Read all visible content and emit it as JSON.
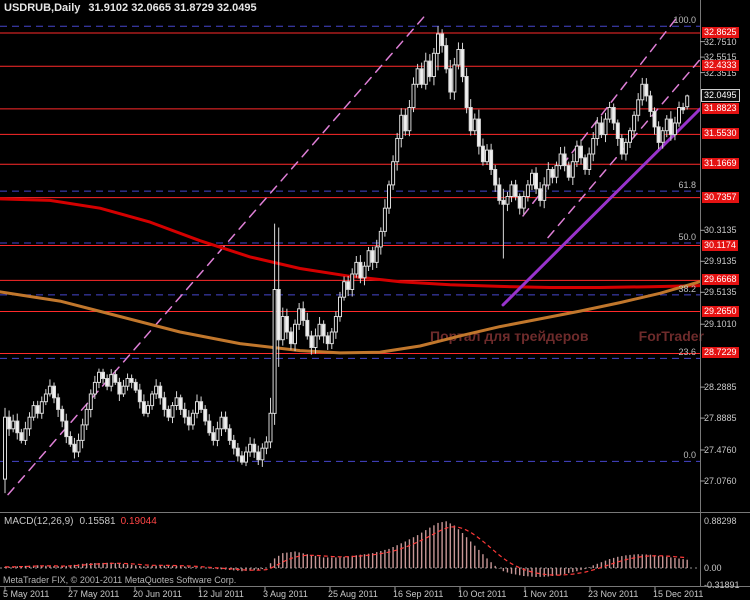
{
  "header": {
    "title": "USDRUB,Daily",
    "ohlc": "31.9102 32.0665 31.8729 32.0495"
  },
  "watermark": {
    "part1": "Портал для трейдеров",
    "part2": "ForTrader"
  },
  "footer": {
    "copyright": "MetaTrader FIX, © 2001-2011 MetaQuotes Software Corp."
  },
  "colors": {
    "background": "#000000",
    "level_line": "#ff2a2a",
    "badge_bg": "#e41212",
    "ma_red": "#d40000",
    "ma_orange": "#c1772c",
    "purple": "#9933cc",
    "pink": "#de7fd6",
    "fib_line": "#4646cc",
    "bull_fill": "#000000",
    "bear_fill": "#f0f0f0",
    "candle_stroke": "#d9d9d9",
    "macd_bar": "#c79797",
    "macd_signal": "#ff3838",
    "axis_text": "#c8c8c8",
    "watermark": "#6e2b2b"
  },
  "price_axis": {
    "plain": [
      "32.7510",
      "32.5515",
      "32.3515",
      "30.3135",
      "29.9135",
      "29.5135",
      "29.1010",
      "28.2885",
      "27.8885",
      "27.4760",
      "27.0760"
    ],
    "current": "32.0495"
  },
  "chart_data": {
    "type": "candlestick",
    "symbol": "USDRUB",
    "timeframe": "Daily",
    "title": "USDRUB,Daily",
    "ohlc_current": {
      "open": 31.9102,
      "high": 32.0665,
      "low": 31.8729,
      "close": 32.0495
    },
    "x_dates": [
      "5 May 2011",
      "27 May 2011",
      "20 Jun 2011",
      "12 Jul 2011",
      "3 Aug 2011",
      "25 Aug 2011",
      "16 Sep 2011",
      "10 Oct 2011",
      "1 Nov 2011",
      "23 Nov 2011",
      "15 Dec 2011"
    ],
    "ylim_main": [
      26.77,
      33.1
    ],
    "closes": [
      27.9,
      27.75,
      27.85,
      27.7,
      27.6,
      27.75,
      27.9,
      28.05,
      27.95,
      28.1,
      28.2,
      28.3,
      28.15,
      28.0,
      27.85,
      27.65,
      27.55,
      27.45,
      27.6,
      27.8,
      28.0,
      28.2,
      28.35,
      28.48,
      28.4,
      28.3,
      28.45,
      28.35,
      28.2,
      28.3,
      28.4,
      28.35,
      28.25,
      28.1,
      27.95,
      28.05,
      28.2,
      28.3,
      28.15,
      28.0,
      27.9,
      28.05,
      28.15,
      28.0,
      27.9,
      27.8,
      27.95,
      28.1,
      28.0,
      27.85,
      27.7,
      27.6,
      27.75,
      27.9,
      27.75,
      27.6,
      27.5,
      27.4,
      27.32,
      27.45,
      27.55,
      27.45,
      27.35,
      27.5,
      27.58,
      27.95,
      29.55,
      28.9,
      29.2,
      29.0,
      28.85,
      29.1,
      29.3,
      29.15,
      28.95,
      28.8,
      28.95,
      29.1,
      28.95,
      28.85,
      29.0,
      29.2,
      29.45,
      29.65,
      29.55,
      29.75,
      29.9,
      29.7,
      29.85,
      30.05,
      29.9,
      30.1,
      30.3,
      30.6,
      30.9,
      31.2,
      31.5,
      31.8,
      31.6,
      31.9,
      32.2,
      32.4,
      32.2,
      32.5,
      32.3,
      32.6,
      32.85,
      32.7,
      32.4,
      32.1,
      32.45,
      32.65,
      32.3,
      31.9,
      31.6,
      31.75,
      31.4,
      31.2,
      31.35,
      31.1,
      30.9,
      30.7,
      30.65,
      30.75,
      30.9,
      30.75,
      30.6,
      30.75,
      30.9,
      31.05,
      30.85,
      30.7,
      30.9,
      31.1,
      31.0,
      31.15,
      31.3,
      31.15,
      31.0,
      31.2,
      31.4,
      31.25,
      31.1,
      31.3,
      31.5,
      31.7,
      31.55,
      31.75,
      31.9,
      31.7,
      31.5,
      31.3,
      31.45,
      31.6,
      31.8,
      32.0,
      32.2,
      32.05,
      31.85,
      31.65,
      31.45,
      31.6,
      31.75,
      31.55,
      31.7,
      31.9,
      31.87,
      32.0495
    ],
    "overrides": {
      "0": [
        27.1,
        28.02,
        26.92,
        27.9
      ],
      "65": [
        27.58,
        28.15,
        27.5,
        27.95
      ],
      "66": [
        27.95,
        30.4,
        27.8,
        29.55
      ],
      "67": [
        29.55,
        30.35,
        28.55,
        28.9
      ],
      "106": [
        32.6,
        32.95,
        32.38,
        32.85
      ],
      "122": [
        30.7,
        30.85,
        29.95,
        30.65
      ],
      "167": [
        31.9102,
        32.0665,
        31.8729,
        32.0495
      ]
    },
    "h_levels": [
      32.8625,
      32.4333,
      31.8823,
      31.553,
      31.1669,
      30.7357,
      30.1174,
      29.6668,
      29.265,
      28.7229
    ],
    "fib_levels": [
      {
        "label": "0.0",
        "price": 27.33
      },
      {
        "label": "23.6",
        "price": 28.66
      },
      {
        "label": "38.2",
        "price": 29.48
      },
      {
        "label": "50.0",
        "price": 30.15
      },
      {
        "label": "61.8",
        "price": 30.82
      },
      {
        "label": "100.0",
        "price": 32.95
      }
    ],
    "ma_slow_red": [
      [
        0,
        30.72
      ],
      [
        50,
        30.7
      ],
      [
        100,
        30.6
      ],
      [
        150,
        30.42
      ],
      [
        200,
        30.18
      ],
      [
        250,
        29.97
      ],
      [
        300,
        29.82
      ],
      [
        350,
        29.72
      ],
      [
        400,
        29.65
      ],
      [
        450,
        29.61
      ],
      [
        500,
        29.59
      ],
      [
        550,
        29.575
      ],
      [
        600,
        29.575
      ],
      [
        650,
        29.585
      ],
      [
        700,
        29.6
      ]
    ],
    "ma_mid_orange": [
      [
        0,
        29.52
      ],
      [
        60,
        29.4
      ],
      [
        120,
        29.2
      ],
      [
        180,
        29.0
      ],
      [
        240,
        28.85
      ],
      [
        300,
        28.76
      ],
      [
        340,
        28.73
      ],
      [
        380,
        28.74
      ],
      [
        420,
        28.82
      ],
      [
        460,
        28.95
      ],
      [
        500,
        29.07
      ],
      [
        540,
        29.17
      ],
      [
        580,
        29.27
      ],
      [
        620,
        29.38
      ],
      [
        660,
        29.5
      ],
      [
        700,
        29.65
      ]
    ],
    "trendlines": {
      "purple_solid": [
        [
          503,
          29.35
        ],
        [
          700,
          31.88
        ]
      ],
      "pink_long": [
        [
          8,
          26.9
        ],
        [
          438,
          33.28
        ]
      ],
      "pink_channel_a": [
        [
          523,
          30.5
        ],
        [
          690,
          33.28
        ]
      ],
      "pink_channel_b": [
        [
          548,
          30.22
        ],
        [
          745,
          33.2
        ]
      ]
    },
    "macd": {
      "label": "MACD(12,26,9)",
      "value_main": "0.15581",
      "value_signal": "0.19044",
      "axis_labels": [
        "0.88298",
        "0.00",
        "-0.31891"
      ],
      "keypoints": [
        [
          0,
          0.02
        ],
        [
          8,
          0.05
        ],
        [
          14,
          0.03
        ],
        [
          20,
          0.09
        ],
        [
          26,
          0.1
        ],
        [
          30,
          0.07
        ],
        [
          34,
          0.03
        ],
        [
          38,
          0.05
        ],
        [
          42,
          0.04
        ],
        [
          46,
          0.02
        ],
        [
          50,
          -0.01
        ],
        [
          54,
          -0.03
        ],
        [
          58,
          -0.06
        ],
        [
          62,
          -0.04
        ],
        [
          64,
          0.0
        ],
        [
          66,
          0.18
        ],
        [
          68,
          0.28
        ],
        [
          71,
          0.31
        ],
        [
          74,
          0.26
        ],
        [
          78,
          0.2
        ],
        [
          82,
          0.2
        ],
        [
          86,
          0.24
        ],
        [
          90,
          0.28
        ],
        [
          94,
          0.36
        ],
        [
          98,
          0.5
        ],
        [
          101,
          0.62
        ],
        [
          104,
          0.76
        ],
        [
          106,
          0.85
        ],
        [
          108,
          0.88
        ],
        [
          110,
          0.8
        ],
        [
          112,
          0.66
        ],
        [
          114,
          0.5
        ],
        [
          116,
          0.34
        ],
        [
          118,
          0.18
        ],
        [
          120,
          0.04
        ],
        [
          122,
          -0.06
        ],
        [
          124,
          -0.11
        ],
        [
          127,
          -0.15
        ],
        [
          130,
          -0.17
        ],
        [
          133,
          -0.16
        ],
        [
          136,
          -0.13
        ],
        [
          139,
          -0.08
        ],
        [
          142,
          -0.02
        ],
        [
          144,
          0.05
        ],
        [
          146,
          0.11
        ],
        [
          148,
          0.17
        ],
        [
          150,
          0.21
        ],
        [
          152,
          0.24
        ],
        [
          155,
          0.26
        ],
        [
          158,
          0.25
        ],
        [
          161,
          0.22
        ],
        [
          164,
          0.19
        ],
        [
          167,
          0.156
        ]
      ]
    }
  }
}
